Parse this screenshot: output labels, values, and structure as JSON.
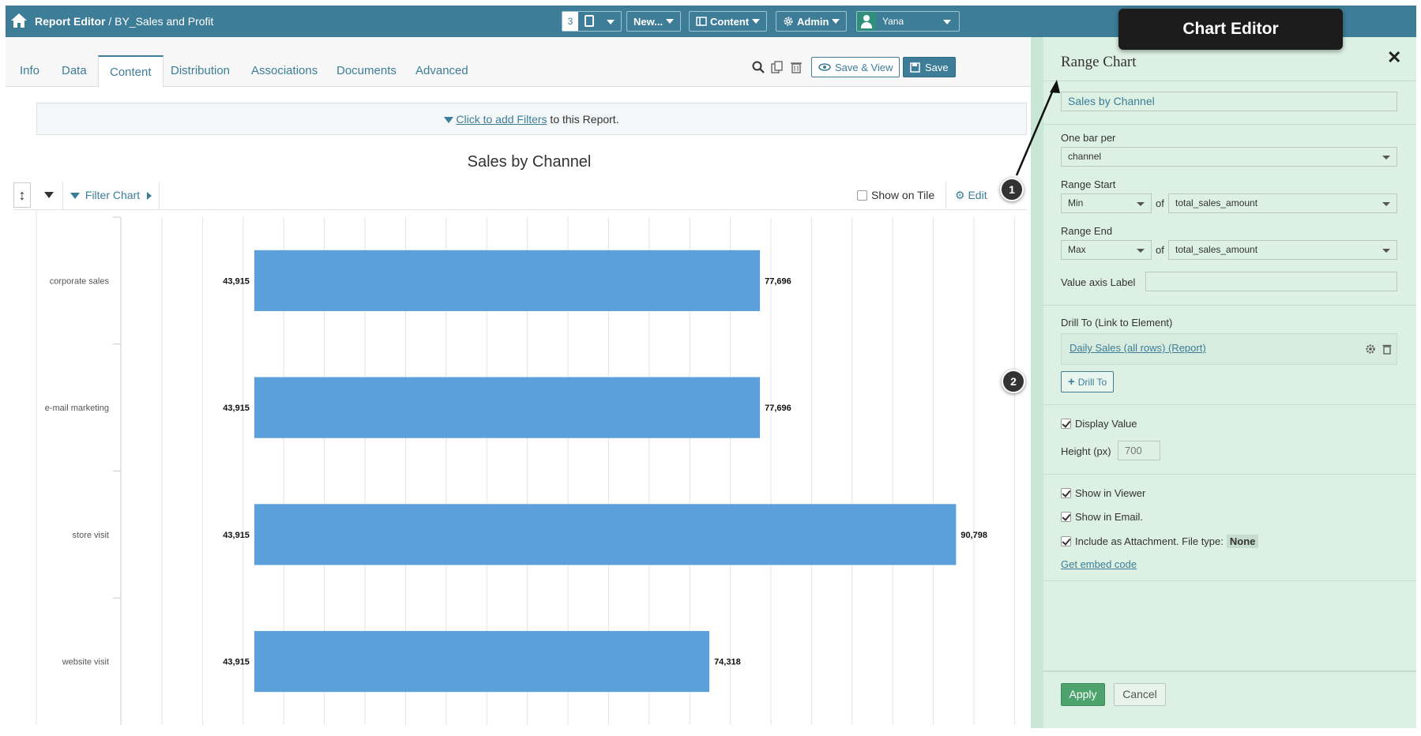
{
  "header": {
    "title": "Report Editor",
    "separator": "/",
    "report_name": "BY_Sales and Profit",
    "count": "3",
    "new_label": "New...",
    "content_label": "Content",
    "admin_label": "Admin",
    "user_name": "Yana"
  },
  "tabs": [
    {
      "label": "Info"
    },
    {
      "label": "Data"
    },
    {
      "label": "Content"
    },
    {
      "label": "Distribution"
    },
    {
      "label": "Associations"
    },
    {
      "label": "Documents"
    },
    {
      "label": "Advanced"
    }
  ],
  "toolbar": {
    "save_view_label": "Save & View",
    "save_label": "Save"
  },
  "filters": {
    "link_text": "Click to add Filters",
    "suffix": " to this Report."
  },
  "chart_toolbar": {
    "filter_chart_label": "Filter Chart",
    "show_on_tile_label": "Show on Tile",
    "edit_label": "Edit"
  },
  "chart_data": {
    "type": "bar",
    "orientation": "horizontal-range",
    "title": "Sales by Channel",
    "categories": [
      "corporate sales",
      "e-mail marketing",
      "store visit",
      "website visit"
    ],
    "series": [
      {
        "start_values": [
          43915,
          43915,
          43915,
          43915
        ],
        "end_values": [
          77696,
          77696,
          90798,
          74318
        ]
      }
    ],
    "start_labels": [
      "43,915",
      "43,915",
      "43,915",
      "43,915"
    ],
    "end_labels": [
      "77,696",
      "77,696",
      "90,798",
      "74,318"
    ],
    "xlim": [
      35000,
      95000
    ],
    "grid": true,
    "bar_color": "#5ba0db"
  },
  "callouts": [
    "1",
    "2"
  ],
  "tooltip": {
    "text": "Chart Editor"
  },
  "panel": {
    "title": "Range Chart",
    "chart_name_value": "Sales by Channel",
    "one_bar_per_label": "One bar per",
    "one_bar_per_value": "channel",
    "range_start_label": "Range Start",
    "range_start_agg": "Min",
    "range_start_field": "total_sales_amount",
    "range_end_label": "Range End",
    "range_end_agg": "Max",
    "range_end_field": "total_sales_amount",
    "of_label": "of",
    "value_axis_label": "Value axis Label",
    "value_axis_value": "",
    "drill_to_label": "Drill To (Link to Element)",
    "drill_link": "Daily Sales (all rows) (Report)",
    "drill_button": "Drill To",
    "display_value_label": "Display Value",
    "height_label": "Height (px)",
    "height_value": "700",
    "show_viewer_label": "Show in Viewer",
    "show_email_label": "Show in Email.",
    "attachment_label": "Include as Attachment. File type:",
    "attachment_type": "None",
    "embed_label": "Get embed code",
    "apply_label": "Apply",
    "cancel_label": "Cancel"
  }
}
